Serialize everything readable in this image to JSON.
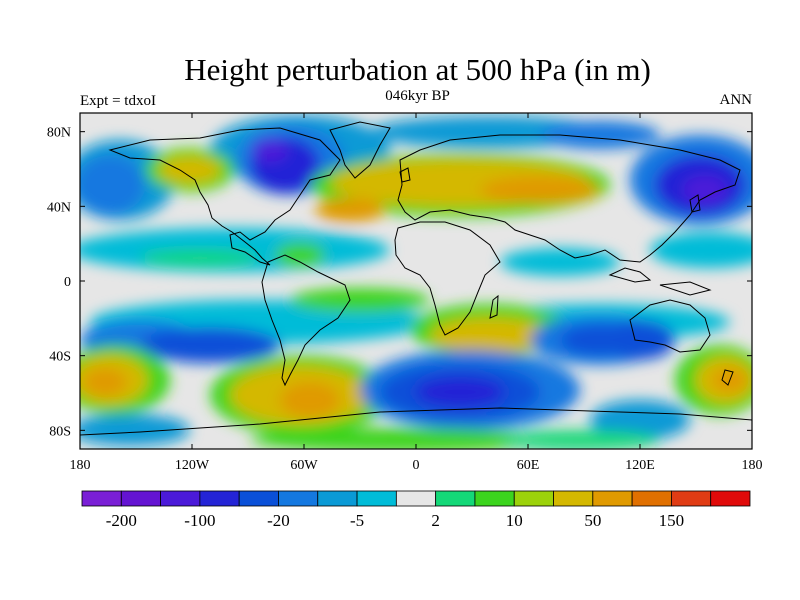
{
  "title": "Height perturbation at 500 hPa (in m)",
  "left_label": "Expt = tdxoI",
  "center_label": "046kyr BP",
  "right_label": "ANN",
  "map": {
    "lon_range": [
      -180,
      180
    ],
    "lat_range": [
      -90,
      90
    ],
    "lat_ticks": [
      {
        "value": 80,
        "label": "80N"
      },
      {
        "value": 40,
        "label": "40N"
      },
      {
        "value": 0,
        "label": "0"
      },
      {
        "value": -40,
        "label": "40S"
      },
      {
        "value": -80,
        "label": "80S"
      }
    ],
    "lon_ticks": [
      {
        "value": -180,
        "label": "180"
      },
      {
        "value": -120,
        "label": "120W"
      },
      {
        "value": -60,
        "label": "60W"
      },
      {
        "value": 0,
        "label": "0"
      },
      {
        "value": 60,
        "label": "60E"
      },
      {
        "value": 120,
        "label": "120E"
      },
      {
        "value": 180,
        "label": "180"
      }
    ]
  },
  "colorbar": {
    "colors": [
      "#7a1fd6",
      "#6414d2",
      "#4b1ad9",
      "#2424d6",
      "#0a50d8",
      "#1478e0",
      "#0a9ad6",
      "#00bcd8",
      "#e6e6e6",
      "#14d878",
      "#3cd41e",
      "#9cd20a",
      "#d4b800",
      "#e09a00",
      "#e07000",
      "#e03c14",
      "#e00a0a"
    ],
    "labels": [
      "-200",
      "-100",
      "-20",
      "-5",
      "2",
      "10",
      "50",
      "150"
    ]
  }
}
